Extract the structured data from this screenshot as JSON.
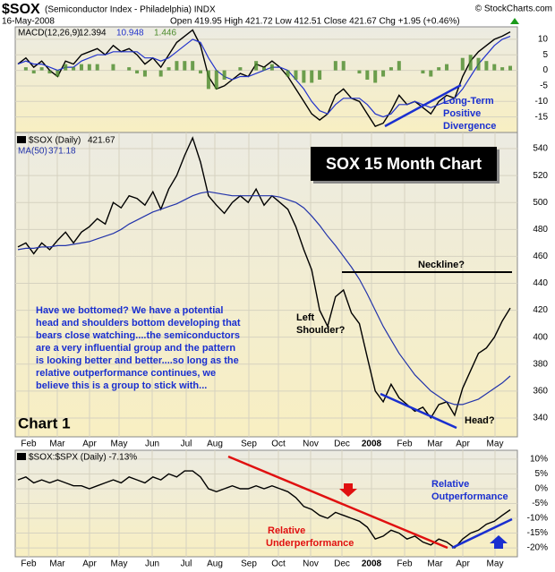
{
  "header": {
    "symbol": "$SOX",
    "name": "(Semiconductor Index - Philadelphia) INDX",
    "date": "16-May-2008",
    "quote": "Open 419.95 High 421.72 Low 412.51 Close 421.67 Chg +1.95 (+0.46%)",
    "credit": "© StockCharts.com"
  },
  "chart_data": [
    {
      "type": "macd",
      "legend": "MACD(12,26,9)",
      "ylim": [
        -20,
        14
      ],
      "yticks": [
        10,
        5,
        0,
        -5,
        -10,
        -15
      ],
      "grid": true,
      "series": [
        {
          "name": "MACD",
          "style": "line",
          "color": "#000000",
          "values": [
            2,
            4,
            1,
            3,
            0,
            -2,
            3,
            2,
            5,
            6,
            7,
            5,
            8,
            6,
            7,
            5,
            2,
            4,
            1,
            5,
            9,
            11,
            13,
            8,
            -2,
            -6,
            -5,
            -3,
            -1,
            -2,
            2,
            1,
            3,
            1,
            -2,
            -6,
            -10,
            -14,
            -16,
            -14,
            -8,
            -6,
            -9,
            -10,
            -14,
            -18,
            -17,
            -13,
            -8,
            -11,
            -10,
            -12,
            -14,
            -10,
            -8,
            -9,
            -2,
            3,
            6,
            8,
            10,
            11,
            12.394
          ]
        },
        {
          "name": "Signal",
          "style": "line",
          "color": "#2233cc",
          "values": [
            2,
            3,
            2,
            2,
            1,
            0,
            1,
            1,
            3,
            4,
            5,
            5,
            6,
            6,
            6,
            6,
            4,
            4,
            3,
            4,
            6,
            8,
            10,
            9,
            4,
            0,
            -2,
            -3,
            -2,
            -2,
            -1,
            0,
            1,
            1,
            0,
            -3,
            -6,
            -10,
            -13,
            -14,
            -11,
            -9,
            -9,
            -9,
            -11,
            -14,
            -15,
            -14,
            -11,
            -11,
            -10,
            -11,
            -12,
            -11,
            -10,
            -9,
            -6,
            -2,
            2,
            5,
            8,
            10,
            10.948
          ]
        },
        {
          "name": "Histogram",
          "style": "bar",
          "color": "#4a8a2a",
          "values": [
            0,
            1,
            -1,
            1,
            -1,
            -2,
            2,
            1,
            2,
            2,
            2,
            0,
            2,
            0,
            1,
            -1,
            -2,
            0,
            -2,
            1,
            3,
            3,
            3,
            -1,
            -6,
            -6,
            -3,
            0,
            1,
            0,
            3,
            1,
            2,
            0,
            -2,
            -3,
            -4,
            -4,
            -3,
            0,
            3,
            3,
            0,
            -1,
            -3,
            -4,
            -2,
            1,
            3,
            0,
            0,
            -1,
            -2,
            1,
            2,
            0,
            4,
            5,
            4,
            3,
            2,
            1,
            1.446
          ]
        }
      ],
      "annotations": [
        "Long-Term",
        "Positive",
        "Divergence"
      ]
    },
    {
      "type": "line",
      "legend": "$SOX (Daily)",
      "ylim": [
        326,
        552
      ],
      "yticks": [
        340,
        360,
        380,
        400,
        420,
        440,
        460,
        480,
        500,
        520,
        540
      ],
      "grid": true,
      "series": [
        {
          "name": "$SOX",
          "color": "#000000",
          "values": [
            467,
            470,
            462,
            470,
            465,
            472,
            478,
            470,
            478,
            482,
            488,
            484,
            500,
            496,
            505,
            503,
            498,
            508,
            495,
            510,
            520,
            535,
            548,
            530,
            505,
            498,
            492,
            500,
            505,
            500,
            510,
            498,
            505,
            500,
            495,
            482,
            465,
            450,
            420,
            408,
            430,
            435,
            418,
            410,
            385,
            360,
            352,
            365,
            355,
            350,
            345,
            348,
            340,
            350,
            352,
            342,
            362,
            375,
            388,
            392,
            400,
            412,
            421.67
          ]
        },
        {
          "name": "MA(50)",
          "color": "#2233aa",
          "values": [
            465,
            466,
            466,
            467,
            467,
            468,
            468,
            469,
            470,
            471,
            473,
            475,
            477,
            480,
            484,
            487,
            490,
            493,
            495,
            497,
            499,
            502,
            505,
            507,
            508,
            507,
            506,
            505,
            505,
            505,
            505,
            505,
            505,
            504,
            502,
            500,
            496,
            490,
            483,
            475,
            468,
            460,
            452,
            443,
            432,
            420,
            408,
            398,
            388,
            380,
            372,
            366,
            360,
            356,
            352,
            350,
            350,
            352,
            354,
            358,
            362,
            366,
            371.18
          ]
        }
      ],
      "x_labels": [
        "Feb",
        "Mar",
        "Apr",
        "May",
        "Jun",
        "Jul",
        "Aug",
        "Sep",
        "Oct",
        "Nov",
        "Dec",
        "2008",
        "Feb",
        "Mar",
        "Apr",
        "May"
      ],
      "title_box": "SOX 15 Month Chart",
      "panel_label": "Chart 1",
      "annotations": {
        "neckline": "Neckline?",
        "left_shoulder": [
          "Left",
          "Shoulder?"
        ],
        "head": "Head?"
      },
      "note_lines": [
        "Have we bottomed?  We have a potential",
        "head and shoulders bottom developing that",
        "bears close watching....the semiconductors",
        "are a very influential group and the pattern",
        "is looking better and better....so long as the",
        "relative outperformance continues, we",
        "believe this is a group to stick with..."
      ]
    },
    {
      "type": "line",
      "legend": "$SOX:$SPX (Daily) -7.13%",
      "ylim": [
        -23,
        13
      ],
      "yticks": [
        {
          "value": 10,
          "label": "10%"
        },
        {
          "value": 5,
          "label": "5%"
        },
        {
          "value": 0,
          "label": "0%"
        },
        {
          "value": -5,
          "label": "-5%"
        },
        {
          "value": -10,
          "label": "-10%"
        },
        {
          "value": -15,
          "label": "-15%"
        },
        {
          "value": -20,
          "label": "-20%"
        }
      ],
      "grid": true,
      "series": [
        {
          "name": "$SOX:$SPX",
          "color": "#000000",
          "values": [
            3,
            4,
            2,
            3,
            2,
            3,
            2,
            1,
            1,
            0,
            1,
            2,
            3,
            2,
            4,
            3,
            2,
            4,
            3,
            5,
            4,
            6,
            6,
            4,
            0,
            -1,
            0,
            1,
            0,
            0,
            1,
            0,
            1,
            0,
            -1,
            -3,
            -6,
            -7,
            -9,
            -10,
            -8,
            -9,
            -10,
            -11,
            -13,
            -17,
            -16,
            -14,
            -15,
            -17,
            -16,
            -18,
            -19,
            -17,
            -18,
            -20,
            -17,
            -15,
            -14,
            -12,
            -11,
            -9,
            -7.13
          ]
        }
      ],
      "x_labels": [
        "Feb",
        "Mar",
        "Apr",
        "May",
        "Jun",
        "Jul",
        "Aug",
        "Sep",
        "Oct",
        "Nov",
        "Dec",
        "2008",
        "Feb",
        "Mar",
        "Apr",
        "May"
      ],
      "annotations": {
        "under": [
          "Relative",
          "Underperformance"
        ],
        "out": [
          "Relative",
          "Outperformance"
        ]
      }
    }
  ]
}
